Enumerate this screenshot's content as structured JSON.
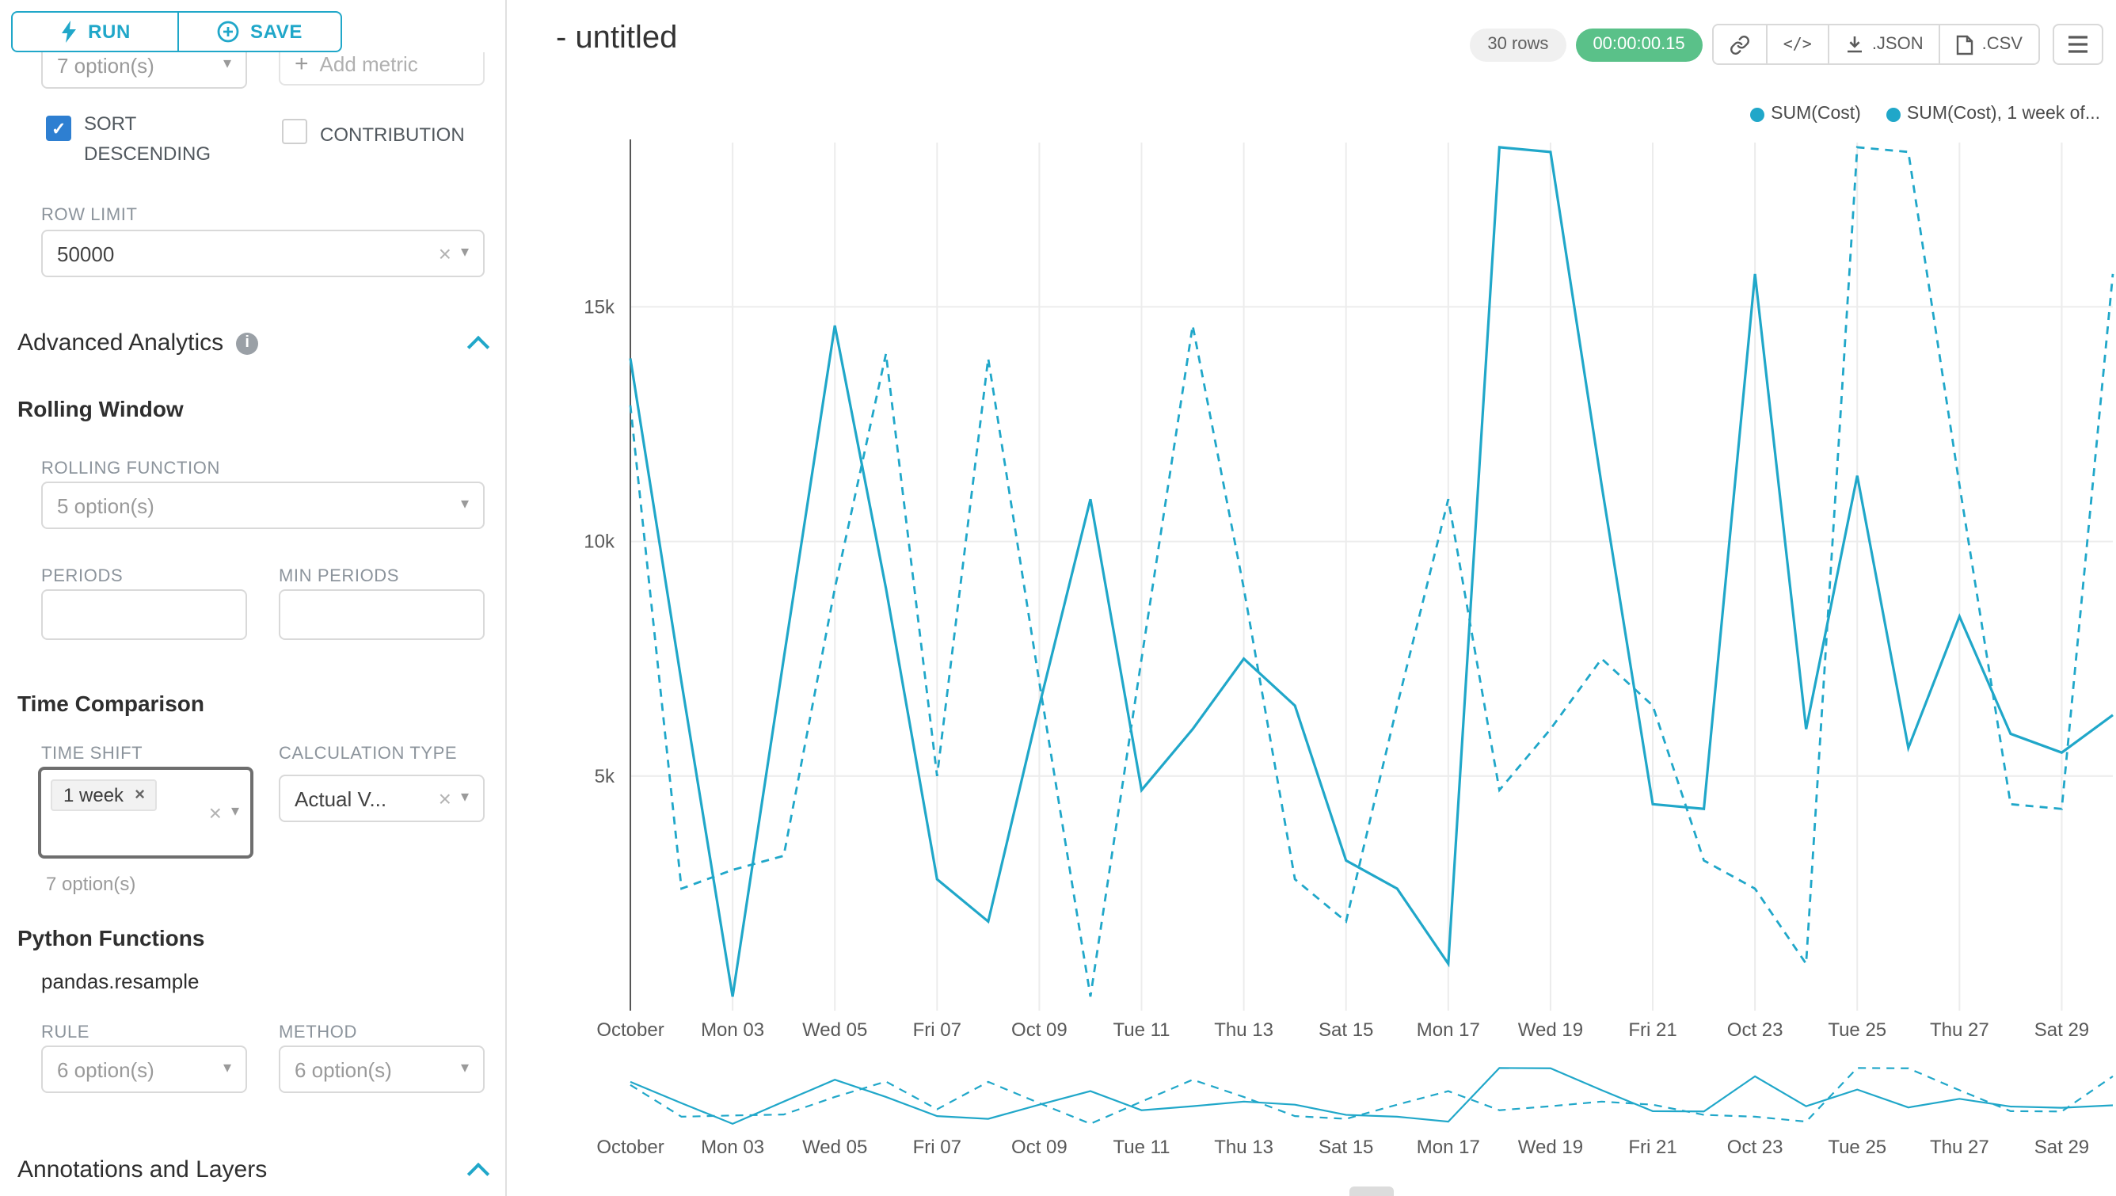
{
  "colors": {
    "accent": "#20a7c9",
    "series_line": "#20a7c9",
    "timer_green": "#5ac189",
    "checkbox_checked": "#2e7fd1",
    "grid": "#ececec"
  },
  "icons": {
    "run": "bolt-icon",
    "save": "plus-circle-icon",
    "add_metric": "plus-icon",
    "info": "info-icon",
    "collapse": "chevron-up-icon",
    "clear": "x-icon",
    "dropdown": "caret-down-icon",
    "link": "link-icon",
    "embed": "code-icon",
    "json_export": "download-icon",
    "csv_export": "file-icon",
    "menu": "menu-icon"
  },
  "sidebar": {
    "run_label": "RUN",
    "save_label": "SAVE",
    "metrics_value": "7 option(s)",
    "add_metric_label": "Add metric",
    "sort_descending_label": "SORT DESCENDING",
    "contribution_label": "CONTRIBUTION",
    "row_limit_label": "ROW LIMIT",
    "row_limit_value": "50000",
    "advanced_analytics_title": "Advanced Analytics",
    "rolling_window_title": "Rolling Window",
    "rolling_function_label": "ROLLING FUNCTION",
    "rolling_function_value": "5 option(s)",
    "periods_label": "PERIODS",
    "min_periods_label": "MIN PERIODS",
    "periods_value": "",
    "min_periods_value": "",
    "time_comparison_title": "Time Comparison",
    "time_shift_label": "TIME SHIFT",
    "time_shift_tag": "1 week",
    "time_shift_hint": "7 option(s)",
    "calculation_type_label": "CALCULATION TYPE",
    "calculation_type_value": "Actual V...",
    "python_functions_title": "Python Functions",
    "pandas_resample_label": "pandas.resample",
    "rule_label": "RULE",
    "rule_value": "6 option(s)",
    "method_label": "METHOD",
    "method_value": "6 option(s)",
    "annotations_title": "Annotations and Layers"
  },
  "header": {
    "title": "- untitled",
    "rows_badge": "30 rows",
    "timer_badge": "00:00:00.15",
    "json_label": ".JSON",
    "csv_label": ".CSV"
  },
  "legend": [
    {
      "label": "SUM(Cost)"
    },
    {
      "label": "SUM(Cost), 1 week of..."
    }
  ],
  "chart_data": {
    "type": "line",
    "title": "- untitled",
    "x_tick_labels": [
      "October",
      "Mon 03",
      "Wed 05",
      "Fri 07",
      "Oct 09",
      "Tue 11",
      "Thu 13",
      "Sat 15",
      "Mon 17",
      "Wed 19",
      "Fri 21",
      "Oct 23",
      "Tue 25",
      "Thu 27",
      "Sat 29"
    ],
    "y_tick_labels": [
      "5k",
      "10k",
      "15k"
    ],
    "ylim": [
      0,
      18500
    ],
    "grid": true,
    "legend_position": "top-right",
    "series": [
      {
        "name": "SUM(Cost)",
        "style": "solid",
        "values": [
          13900,
          7000,
          300,
          7500,
          14600,
          9000,
          2800,
          1900,
          6500,
          10900,
          4700,
          6000,
          7500,
          6500,
          3200,
          2600,
          1000,
          18400,
          18300,
          11200,
          4400,
          4300,
          15700,
          6000,
          11400,
          5600,
          8400,
          5900,
          5500,
          6300
        ]
      },
      {
        "name": "SUM(Cost), 1 week of...",
        "style": "dashed",
        "values": [
          12900,
          2600,
          3000,
          3300,
          9000,
          14000,
          5000,
          13900,
          7000,
          300,
          7500,
          14600,
          9000,
          2800,
          1900,
          6500,
          10900,
          4700,
          6000,
          7500,
          6500,
          3200,
          2600,
          1000,
          18400,
          18300,
          11200,
          4400,
          4300,
          15700
        ]
      }
    ]
  }
}
